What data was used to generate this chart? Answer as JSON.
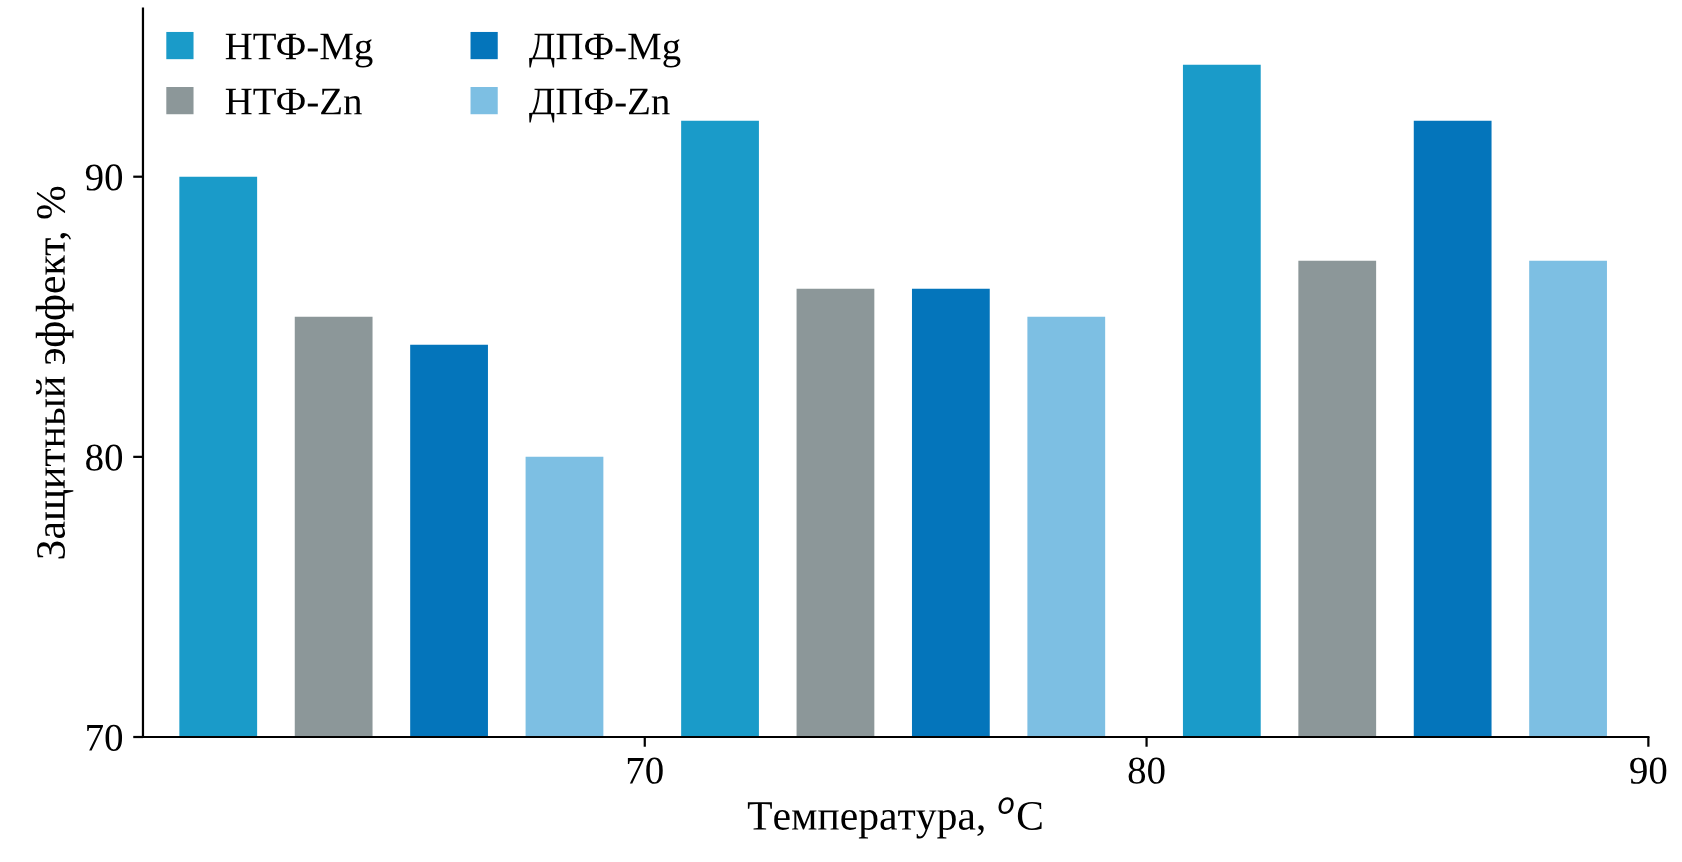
{
  "chart_data": {
    "type": "bar",
    "xlabel": "Температура, $^{o}$C",
    "ylabel": "Защитный эффект, %",
    "xlim": [
      60,
      90
    ],
    "xticks": [
      70,
      80,
      90
    ],
    "ylim": [
      70,
      96
    ],
    "yticks": [
      70,
      80,
      90
    ],
    "series": [
      {
        "name": "НТФ-Mg",
        "color": "#1a9bc9",
        "x": [
          61.5,
          71.5,
          81.5
        ],
        "values": [
          90,
          92,
          94
        ]
      },
      {
        "name": "НТФ-Zn",
        "color": "#8c9799",
        "x": [
          63.8,
          73.8,
          83.8
        ],
        "values": [
          85,
          86,
          87
        ]
      },
      {
        "name": "ДПФ-Mg",
        "color": "#0475bb",
        "x": [
          66.1,
          76.1,
          86.1
        ],
        "values": [
          84,
          86,
          92
        ]
      },
      {
        "name": "ДПФ-Zn",
        "color": "#7dbfe3",
        "x": [
          68.4,
          78.4,
          88.4
        ],
        "values": [
          80,
          85,
          87
        ]
      }
    ],
    "legend": "top left",
    "grid": false
  }
}
